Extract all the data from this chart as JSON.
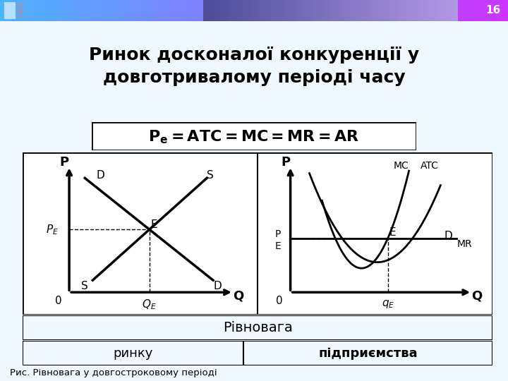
{
  "title_line1": "Ринок досконалої конкуренції у",
  "title_line2": "довготривалому періоді часу",
  "caption": "Рис. Рівновага у довгостроковому періоді",
  "label_rivnovaga": "Рівновага",
  "label_rynku": "ринку",
  "label_pidpryyemstva": "підприємства",
  "bg_slide": "#f0f8ff",
  "bg_title": "#e0f0fa",
  "bg_chart": "#ffffff",
  "bar_rivnovaga": "#f5c8a0",
  "bar_rynku": "#c8c870",
  "bar_pidpr": "#00d8cc",
  "slide_number": "16",
  "topbar_color": "#4455aa",
  "title_fontsize": 18,
  "formula_fontsize": 16
}
